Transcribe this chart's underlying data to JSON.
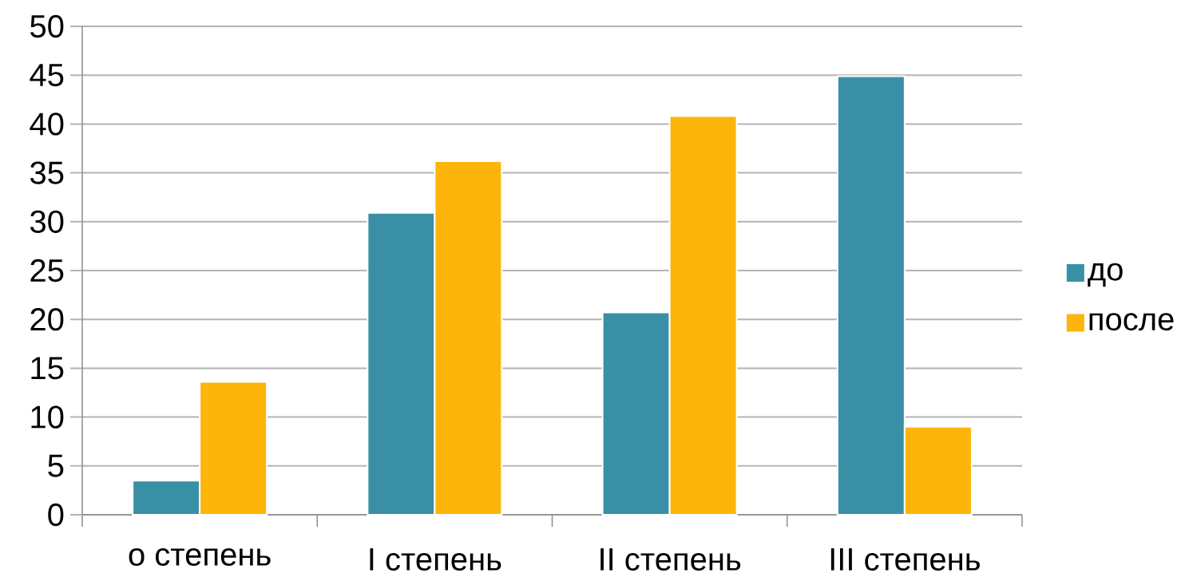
{
  "chart_data": {
    "type": "bar",
    "categories": [
      "о степень",
      "I степень",
      "II степень",
      "III степень"
    ],
    "series": [
      {
        "name": "до",
        "color": "#3990a6",
        "values": [
          3.5,
          30.9,
          20.7,
          44.9
        ]
      },
      {
        "name": "после",
        "color": "#fdb50c",
        "values": [
          13.6,
          36.2,
          40.8,
          9.0
        ]
      }
    ],
    "ylim": [
      0,
      50
    ],
    "yticks": [
      0,
      5,
      10,
      15,
      20,
      25,
      30,
      35,
      40,
      45,
      50
    ],
    "grid": "y",
    "legend": "right"
  }
}
